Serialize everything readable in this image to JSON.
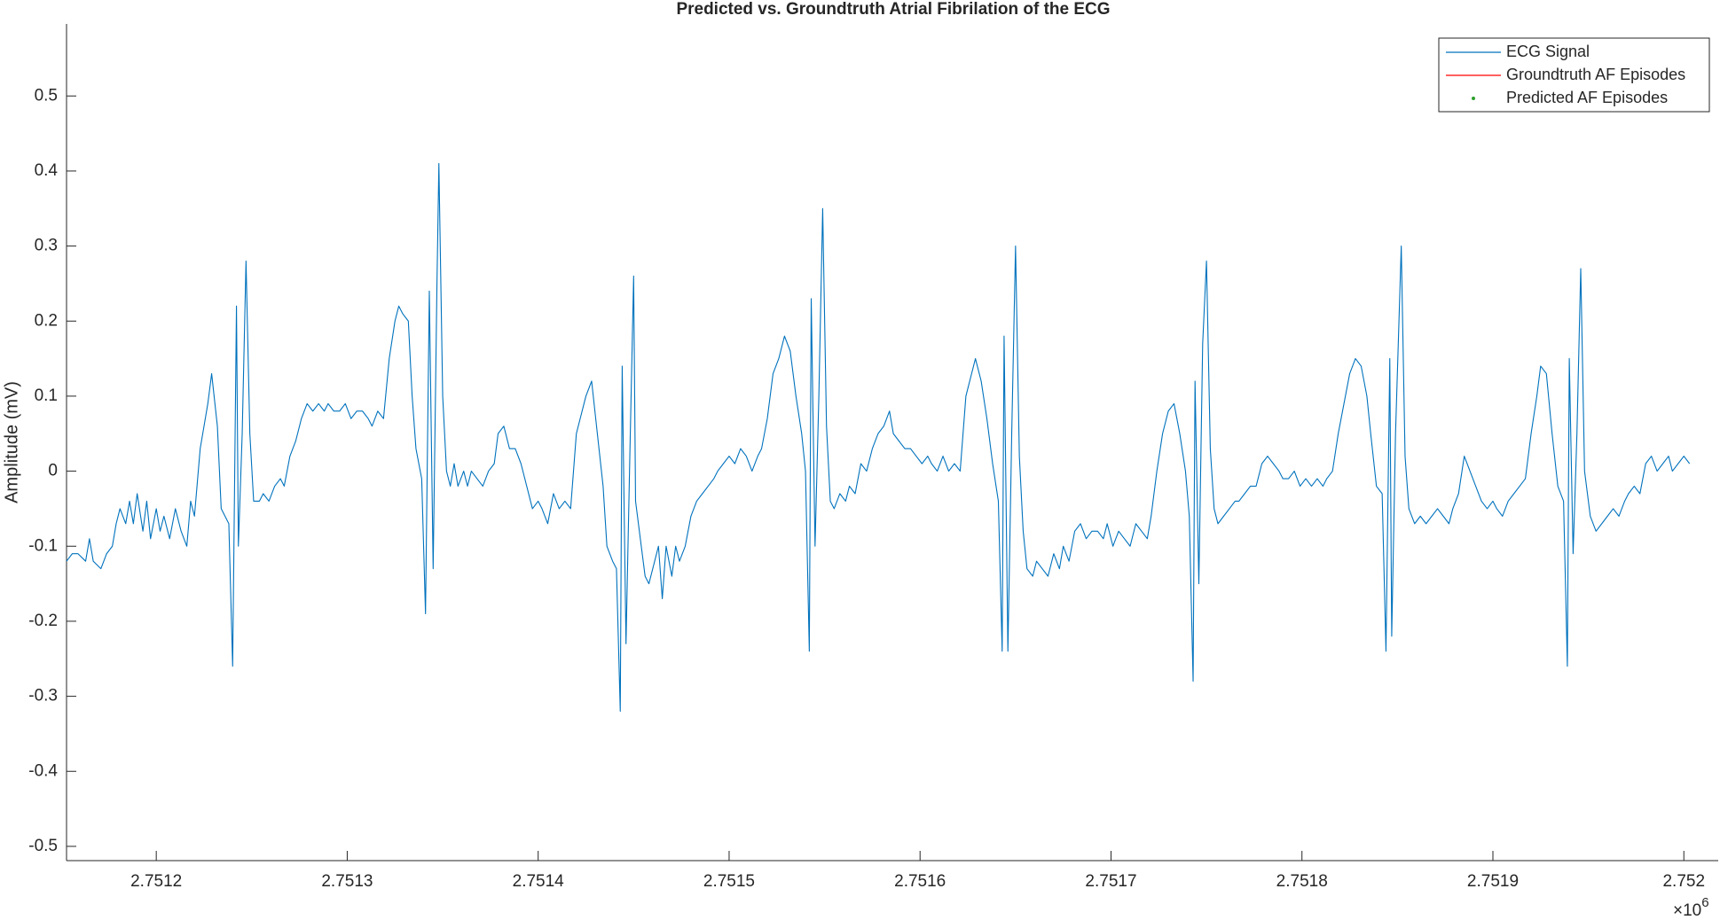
{
  "chart_data": {
    "type": "line",
    "title": "Predicted vs. Groundtruth Atrial Fibrilation of the ECG",
    "y_label": "Amplitude (mV)",
    "x_multiplier_base": "×10",
    "x_multiplier_exponent": "6",
    "grid": false,
    "legend": "upper right",
    "xlim": [
      2751153,
      2752018
    ],
    "ylim": [
      -0.519,
      0.596
    ],
    "xticks": [
      {
        "value": 2751200,
        "label": "2.7512"
      },
      {
        "value": 2751300,
        "label": "2.7513"
      },
      {
        "value": 2751400,
        "label": "2.7514"
      },
      {
        "value": 2751500,
        "label": "2.7515"
      },
      {
        "value": 2751600,
        "label": "2.7516"
      },
      {
        "value": 2751700,
        "label": "2.7517"
      },
      {
        "value": 2751800,
        "label": "2.7518"
      },
      {
        "value": 2751900,
        "label": "2.7519"
      },
      {
        "value": 2752000,
        "label": "2.752"
      }
    ],
    "yticks": [
      -0.5,
      -0.4,
      -0.3,
      -0.2,
      -0.1,
      0,
      0.1,
      0.2,
      0.3,
      0.4,
      0.5
    ],
    "x": [
      2751153,
      2751156,
      2751159,
      2751163,
      2751165,
      2751167,
      2751171,
      2751174,
      2751177,
      2751179,
      2751181,
      2751184,
      2751186,
      2751188,
      2751190,
      2751193,
      2751195,
      2751197,
      2751200,
      2751202,
      2751204,
      2751207,
      2751210,
      2751213,
      2751216,
      2751218,
      2751220,
      2751223,
      2751225,
      2751227,
      2751229,
      2751232,
      2751234,
      2751236,
      2751238,
      2751240,
      2751242,
      2751243,
      2751245,
      2751247,
      2751249,
      2751251,
      2751254,
      2751256,
      2751259,
      2751262,
      2751265,
      2751267,
      2751270,
      2751273,
      2751276,
      2751279,
      2751282,
      2751285,
      2751288,
      2751290,
      2751293,
      2751296,
      2751299,
      2751302,
      2751305,
      2751308,
      2751311,
      2751313,
      2751316,
      2751319,
      2751322,
      2751325,
      2751327,
      2751329,
      2751332,
      2751334,
      2751336,
      2751339,
      2751341,
      2751343,
      2751345,
      2751347,
      2751348,
      2751350,
      2751352,
      2751354,
      2751356,
      2751358,
      2751361,
      2751363,
      2751365,
      2751368,
      2751371,
      2751374,
      2751377,
      2751379,
      2751382,
      2751385,
      2751388,
      2751391,
      2751394,
      2751397,
      2751400,
      2751402,
      2751405,
      2751408,
      2751411,
      2751414,
      2751417,
      2751420,
      2751423,
      2751425,
      2751428,
      2751431,
      2751434,
      2751436,
      2751439,
      2751441,
      2751443,
      2751444,
      2751446,
      2751448,
      2751450,
      2751451,
      2751454,
      2751456,
      2751458,
      2751461,
      2751463,
      2751465,
      2751467,
      2751470,
      2751472,
      2751474,
      2751477,
      2751480,
      2751483,
      2751486,
      2751489,
      2751492,
      2751494,
      2751497,
      2751500,
      2751503,
      2751506,
      2751509,
      2751512,
      2751515,
      2751517,
      2751520,
      2751523,
      2751526,
      2751529,
      2751532,
      2751535,
      2751538,
      2751540,
      2751542,
      2751543,
      2751545,
      2751547,
      2751549,
      2751551,
      2751553,
      2751555,
      2751558,
      2751561,
      2751563,
      2751566,
      2751569,
      2751572,
      2751575,
      2751578,
      2751581,
      2751584,
      2751586,
      2751589,
      2751592,
      2751595,
      2751598,
      2751601,
      2751604,
      2751606,
      2751609,
      2751612,
      2751615,
      2751618,
      2751621,
      2751624,
      2751627,
      2751629,
      2751632,
      2751635,
      2751638,
      2751641,
      2751643,
      2751644,
      2751646,
      2751648,
      2751650,
      2751652,
      2751654,
      2751656,
      2751659,
      2751661,
      2751664,
      2751667,
      2751670,
      2751673,
      2751675,
      2751678,
      2751681,
      2751684,
      2751687,
      2751690,
      2751693,
      2751696,
      2751698,
      2751701,
      2751704,
      2751707,
      2751710,
      2751713,
      2751716,
      2751719,
      2751721,
      2751724,
      2751727,
      2751730,
      2751733,
      2751736,
      2751739,
      2751741,
      2751743,
      2751744,
      2751746,
      2751748,
      2751750,
      2751752,
      2751754,
      2751756,
      2751759,
      2751762,
      2751765,
      2751767,
      2751770,
      2751773,
      2751776,
      2751779,
      2751782,
      2751785,
      2751788,
      2751790,
      2751793,
      2751796,
      2751799,
      2751802,
      2751805,
      2751808,
      2751811,
      2751813,
      2751816,
      2751819,
      2751822,
      2751825,
      2751828,
      2751831,
      2751834,
      2751836,
      2751839,
      2751842,
      2751844,
      2751846,
      2751847,
      2751849,
      2751852,
      2751854,
      2751856,
      2751859,
      2751862,
      2751865,
      2751868,
      2751871,
      2751874,
      2751877,
      2751879,
      2751882,
      2751885,
      2751888,
      2751891,
      2751894,
      2751897,
      2751900,
      2751902,
      2751905,
      2751908,
      2751911,
      2751914,
      2751917,
      2751920,
      2751923,
      2751925,
      2751928,
      2751931,
      2751934,
      2751937,
      2751939,
      2751940,
      2751942,
      2751944,
      2751946,
      2751948,
      2751951,
      2751954,
      2751957,
      2751960,
      2751963,
      2751966,
      2751969,
      2751971,
      2751974,
      2751977,
      2751980,
      2751983,
      2751986,
      2751989,
      2751992,
      2751994,
      2751997,
      2752000,
      2752003
    ],
    "series": [
      {
        "name": "ECG Signal",
        "color": "#0072bd",
        "style": "line",
        "values": [
          -0.12,
          -0.11,
          -0.11,
          -0.12,
          -0.09,
          -0.12,
          -0.13,
          -0.11,
          -0.1,
          -0.07,
          -0.05,
          -0.07,
          -0.04,
          -0.07,
          -0.03,
          -0.08,
          -0.04,
          -0.09,
          -0.05,
          -0.08,
          -0.06,
          -0.09,
          -0.05,
          -0.08,
          -0.1,
          -0.04,
          -0.06,
          0.03,
          0.06,
          0.09,
          0.13,
          0.06,
          -0.05,
          -0.06,
          -0.07,
          -0.26,
          0.22,
          -0.1,
          0.05,
          0.28,
          0.05,
          -0.04,
          -0.04,
          -0.03,
          -0.04,
          -0.02,
          -0.01,
          -0.02,
          0.02,
          0.04,
          0.07,
          0.09,
          0.08,
          0.09,
          0.08,
          0.09,
          0.08,
          0.08,
          0.09,
          0.07,
          0.08,
          0.08,
          0.07,
          0.06,
          0.08,
          0.07,
          0.15,
          0.2,
          0.22,
          0.21,
          0.2,
          0.1,
          0.03,
          -0.01,
          -0.19,
          0.24,
          -0.13,
          0.25,
          0.41,
          0.1,
          0,
          -0.02,
          0.01,
          -0.02,
          0,
          -0.02,
          0,
          -0.01,
          -0.02,
          0,
          0.01,
          0.05,
          0.06,
          0.03,
          0.03,
          0.01,
          -0.02,
          -0.05,
          -0.04,
          -0.05,
          -0.07,
          -0.03,
          -0.05,
          -0.04,
          -0.05,
          0.05,
          0.08,
          0.1,
          0.12,
          0.05,
          -0.02,
          -0.1,
          -0.12,
          -0.13,
          -0.32,
          0.14,
          -0.23,
          0.02,
          0.26,
          -0.04,
          -0.1,
          -0.14,
          -0.15,
          -0.12,
          -0.1,
          -0.17,
          -0.1,
          -0.14,
          -0.1,
          -0.12,
          -0.1,
          -0.06,
          -0.04,
          -0.03,
          -0.02,
          -0.01,
          0,
          0.01,
          0.02,
          0.01,
          0.03,
          0.02,
          0,
          0.02,
          0.03,
          0.07,
          0.13,
          0.15,
          0.18,
          0.16,
          0.1,
          0.05,
          0,
          -0.24,
          0.23,
          -0.1,
          0.1,
          0.35,
          0.06,
          -0.04,
          -0.05,
          -0.03,
          -0.04,
          -0.02,
          -0.03,
          0.01,
          0,
          0.03,
          0.05,
          0.06,
          0.08,
          0.05,
          0.04,
          0.03,
          0.03,
          0.02,
          0.01,
          0.02,
          0.01,
          0,
          0.02,
          0,
          0.01,
          0,
          0.1,
          0.13,
          0.15,
          0.12,
          0.07,
          0.01,
          -0.04,
          -0.24,
          0.18,
          -0.24,
          0.05,
          0.3,
          0.02,
          -0.08,
          -0.13,
          -0.14,
          -0.12,
          -0.13,
          -0.14,
          -0.11,
          -0.13,
          -0.1,
          -0.12,
          -0.08,
          -0.07,
          -0.09,
          -0.08,
          -0.08,
          -0.09,
          -0.07,
          -0.1,
          -0.08,
          -0.09,
          -0.1,
          -0.07,
          -0.08,
          -0.09,
          -0.06,
          0,
          0.05,
          0.08,
          0.09,
          0.05,
          0,
          -0.06,
          -0.28,
          0.12,
          -0.15,
          0.17,
          0.28,
          0.03,
          -0.05,
          -0.07,
          -0.06,
          -0.05,
          -0.04,
          -0.04,
          -0.03,
          -0.02,
          -0.02,
          0.01,
          0.02,
          0.01,
          0,
          -0.01,
          -0.01,
          0,
          -0.02,
          -0.01,
          -0.02,
          -0.01,
          -0.02,
          -0.01,
          0,
          0.05,
          0.09,
          0.13,
          0.15,
          0.14,
          0.1,
          0.05,
          -0.02,
          -0.03,
          -0.24,
          0.15,
          -0.22,
          0.05,
          0.3,
          0.02,
          -0.05,
          -0.07,
          -0.06,
          -0.07,
          -0.06,
          -0.05,
          -0.06,
          -0.07,
          -0.05,
          -0.03,
          0.02,
          0,
          -0.02,
          -0.04,
          -0.05,
          -0.04,
          -0.05,
          -0.06,
          -0.04,
          -0.03,
          -0.02,
          -0.01,
          0.05,
          0.1,
          0.14,
          0.13,
          0.05,
          -0.02,
          -0.04,
          -0.26,
          0.15,
          -0.11,
          0.05,
          0.27,
          0,
          -0.06,
          -0.08,
          -0.07,
          -0.06,
          -0.05,
          -0.06,
          -0.04,
          -0.03,
          -0.02,
          -0.03,
          0.01,
          0.02,
          0,
          0.01,
          0.02,
          0,
          0.01,
          0.02,
          0.01
        ]
      },
      {
        "name": "Groundtruth AF Episodes",
        "color": "#ff0000",
        "style": "line"
      },
      {
        "name": "Predicted AF Episodes",
        "color": "#2ca02c",
        "style": "marker"
      }
    ]
  }
}
